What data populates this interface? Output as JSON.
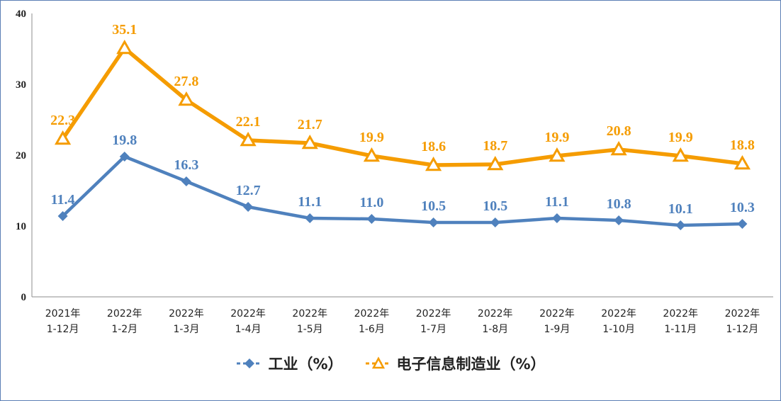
{
  "chart_data": {
    "type": "line",
    "categories": [
      [
        "2021年",
        "1-12月"
      ],
      [
        "2022年",
        "1-2月"
      ],
      [
        "2022年",
        "1-3月"
      ],
      [
        "2022年",
        "1-4月"
      ],
      [
        "2022年",
        "1-5月"
      ],
      [
        "2022年",
        "1-6月"
      ],
      [
        "2022年",
        "1-7月"
      ],
      [
        "2022年",
        "1-8月"
      ],
      [
        "2022年",
        "1-9月"
      ],
      [
        "2022年",
        "1-10月"
      ],
      [
        "2022年",
        "1-11月"
      ],
      [
        "2022年",
        "1-12月"
      ]
    ],
    "series": [
      {
        "name": "工业（%）",
        "color": "#4f81bd",
        "marker": "diamond",
        "values": [
          11.4,
          19.8,
          16.3,
          12.7,
          11.1,
          11.0,
          10.5,
          10.5,
          11.1,
          10.8,
          10.1,
          10.3
        ],
        "labels": [
          "11.4",
          "19.8",
          "16.3",
          "12.7",
          "11.1",
          "11.0",
          "10.5",
          "10.5",
          "11.1",
          "10.8",
          "10.1",
          "10.3"
        ]
      },
      {
        "name": "电子信息制造业（%）",
        "color": "#f59c00",
        "marker": "triangle",
        "values": [
          22.3,
          35.1,
          27.8,
          22.1,
          21.7,
          19.9,
          18.6,
          18.7,
          19.9,
          20.8,
          19.9,
          18.8
        ],
        "labels": [
          "22.3",
          "35.1",
          "27.8",
          "22.1",
          "21.7",
          "19.9",
          "18.6",
          "18.7",
          "19.9",
          "20.8",
          "19.9",
          "18.8"
        ]
      }
    ],
    "yticks": [
      "0",
      "10",
      "20",
      "30",
      "40"
    ],
    "ylim": [
      0,
      40
    ],
    "grid": false,
    "legend_position": "bottom"
  }
}
